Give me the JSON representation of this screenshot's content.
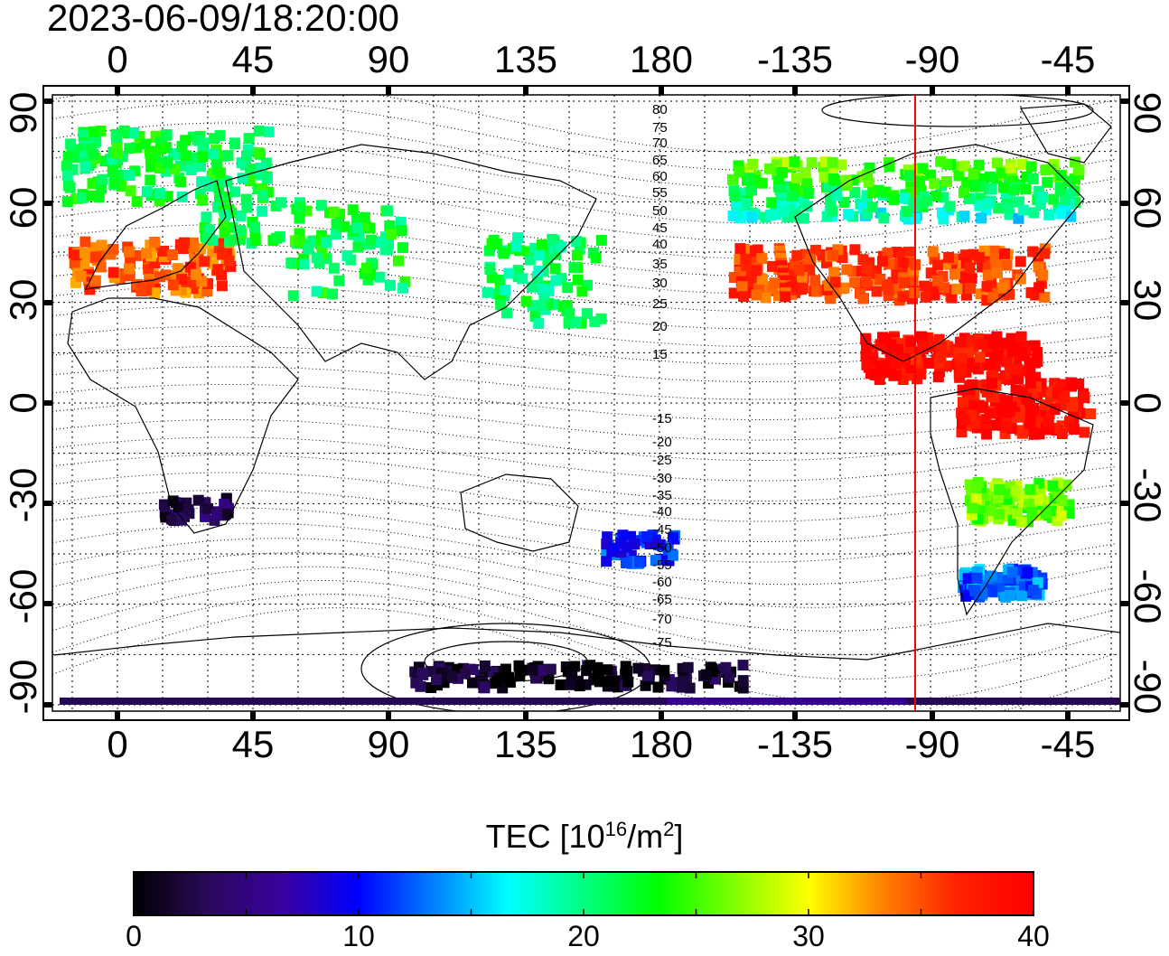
{
  "timestamp": "2023-06-09/18:20:00",
  "x_ticks": [
    "0",
    "45",
    "90",
    "135",
    "180",
    "-135",
    "-90",
    "-45"
  ],
  "y_ticks_left": [
    "90",
    "60",
    "30",
    "0",
    "-30",
    "-60",
    "-90"
  ],
  "y_ticks_right": [
    "90",
    "60",
    "30",
    "0",
    "-30",
    "-60",
    "-90"
  ],
  "contour_labels_north": [
    "80",
    "75",
    "70",
    "65",
    "60",
    "55",
    "50",
    "45",
    "40",
    "35",
    "30",
    "25",
    "20",
    "15"
  ],
  "contour_labels_south": [
    "-15",
    "-20",
    "-25",
    "-30",
    "-35",
    "-40",
    "-45",
    "-50",
    "-55",
    "-60",
    "-65",
    "-70",
    "-75"
  ],
  "colorbar": {
    "title_main": "TEC  [10",
    "title_sup1": "16",
    "title_mid": "/m",
    "title_sup2": "2",
    "title_end": "]",
    "ticks": [
      "0",
      "10",
      "20",
      "30",
      "40"
    ],
    "min": 0,
    "max": 40,
    "colors": [
      "#000000",
      "#2a0a5c",
      "#3a00a0",
      "#0000ff",
      "#0080ff",
      "#00ffff",
      "#00ff80",
      "#00ff00",
      "#80ff00",
      "#ffff00",
      "#ff8000",
      "#ff2000",
      "#ff0000"
    ]
  },
  "map": {
    "lon_ticks": [
      0,
      45,
      90,
      135,
      180,
      -135,
      -90,
      -45
    ],
    "lat_ticks": [
      90,
      60,
      30,
      0,
      -30,
      -60,
      -90
    ],
    "marker_longitude": -90,
    "marker_color": "#ff0000",
    "tec_regions": [
      {
        "name": "europe-north",
        "lon": 15,
        "lat": 72,
        "tec": 22
      },
      {
        "name": "europe-south",
        "lon": 10,
        "lat": 42,
        "tec": 35
      },
      {
        "name": "russia",
        "lon": 60,
        "lat": 55,
        "tec": 22
      },
      {
        "name": "central-asia",
        "lon": 75,
        "lat": 42,
        "tec": 22
      },
      {
        "name": "japan",
        "lon": 140,
        "lat": 38,
        "tec": 21
      },
      {
        "name": "north-america-north",
        "lon": -100,
        "lat": 65,
        "tec": 22
      },
      {
        "name": "north-america-mid",
        "lon": -105,
        "lat": 40,
        "tec": 36
      },
      {
        "name": "central-america",
        "lon": -85,
        "lat": 15,
        "tec": 39
      },
      {
        "name": "south-america-north",
        "lon": -60,
        "lat": 0,
        "tec": 39
      },
      {
        "name": "south-america-mid",
        "lon": -62,
        "lat": -28,
        "tec": 26
      },
      {
        "name": "south-america-south",
        "lon": -68,
        "lat": -52,
        "tec": 13
      },
      {
        "name": "new-zealand",
        "lon": 172,
        "lat": -42,
        "tec": 11
      },
      {
        "name": "south-africa",
        "lon": 25,
        "lat": -30,
        "tec": 3
      },
      {
        "name": "antarctica",
        "lon": 150,
        "lat": -80,
        "tec": 1
      }
    ]
  }
}
